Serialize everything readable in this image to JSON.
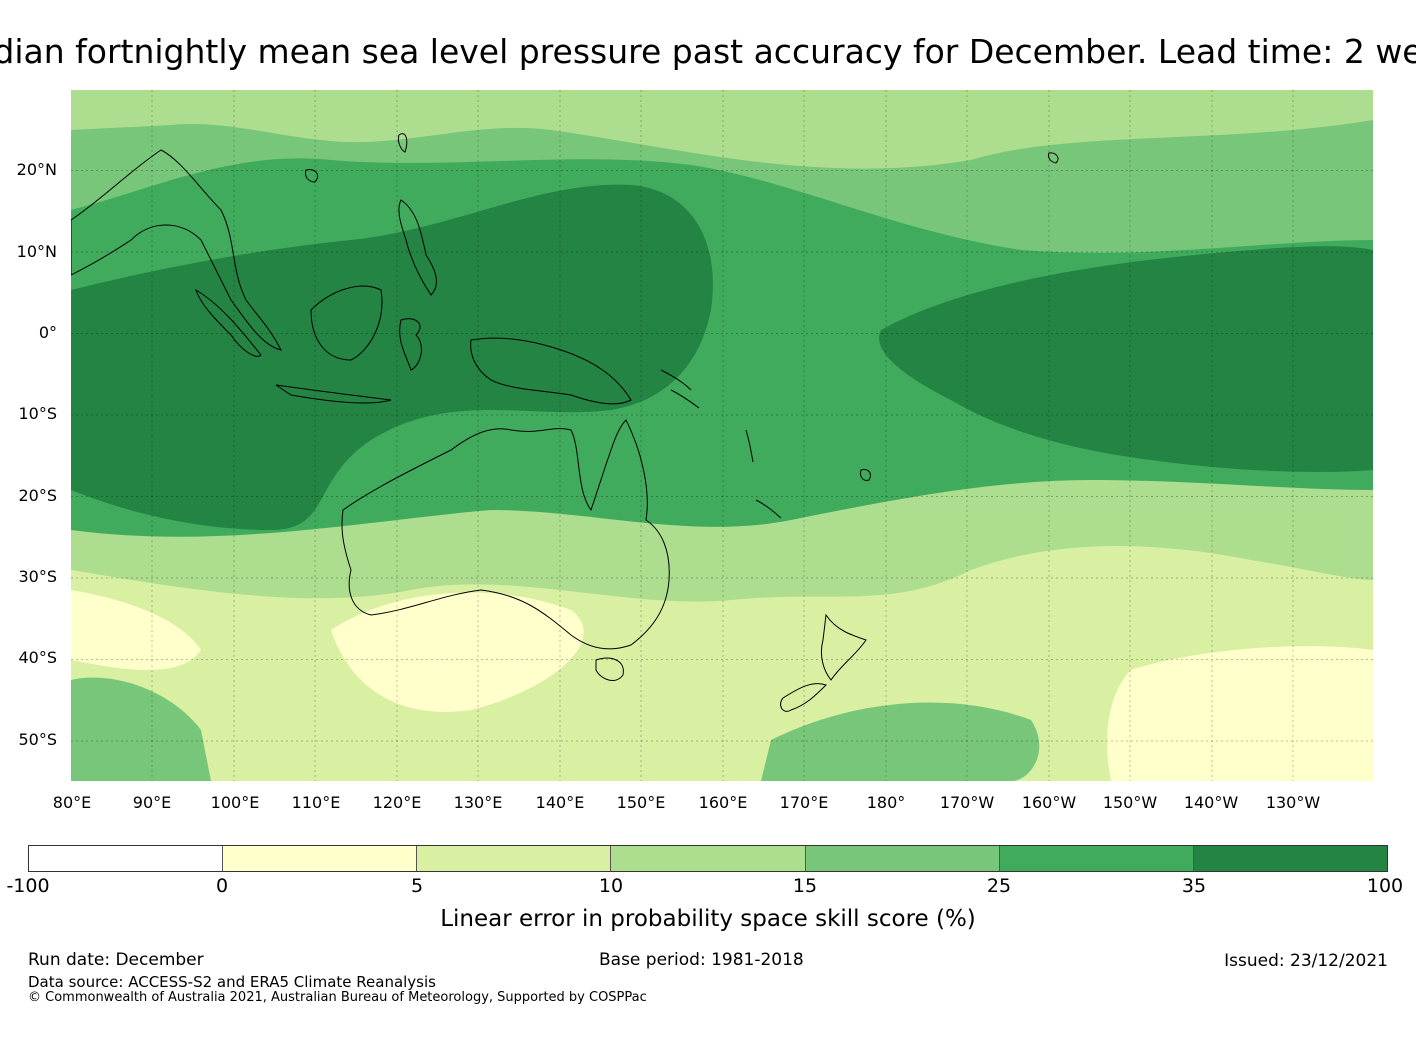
{
  "title": "dian fortnightly mean sea level pressure past accuracy for December. Lead time: 2 we",
  "map": {
    "latitude_labels": [
      "20°N",
      "10°N",
      "0°",
      "10°S",
      "20°S",
      "30°S",
      "40°S",
      "50°S"
    ],
    "longitude_labels": [
      "80°E",
      "90°E",
      "100°E",
      "110°E",
      "120°E",
      "130°E",
      "140°E",
      "150°E",
      "160°E",
      "170°E",
      "180°",
      "170°W",
      "160°W",
      "150°W",
      "140°W",
      "130°W"
    ],
    "region_colors": {
      "very_low": "#ffffcc",
      "low": "#d9f0a3",
      "moderate": "#addd8e",
      "medium": "#78c679",
      "high": "#41ab5d",
      "very_high": "#238443"
    }
  },
  "colorbar": {
    "colors": [
      "#ffffff",
      "#ffffcc",
      "#d9f0a3",
      "#addd8e",
      "#78c679",
      "#41ab5d",
      "#238443"
    ],
    "ticks": [
      "-100",
      "0",
      "5",
      "10",
      "15",
      "25",
      "35",
      "100"
    ],
    "label": "Linear error in probability space skill score (%)"
  },
  "footer": {
    "run_date": "Run date: December",
    "base_period": "Base period: 1981-2018",
    "issued": "Issued: 23/12/2021",
    "data_source": "Data source: ACCESS-S2 and ERA5 Climate Reanalysis",
    "copyright": "© Commonwealth of Australia 2021, Australian Bureau of Meteorology, Supported by COSPPac"
  }
}
